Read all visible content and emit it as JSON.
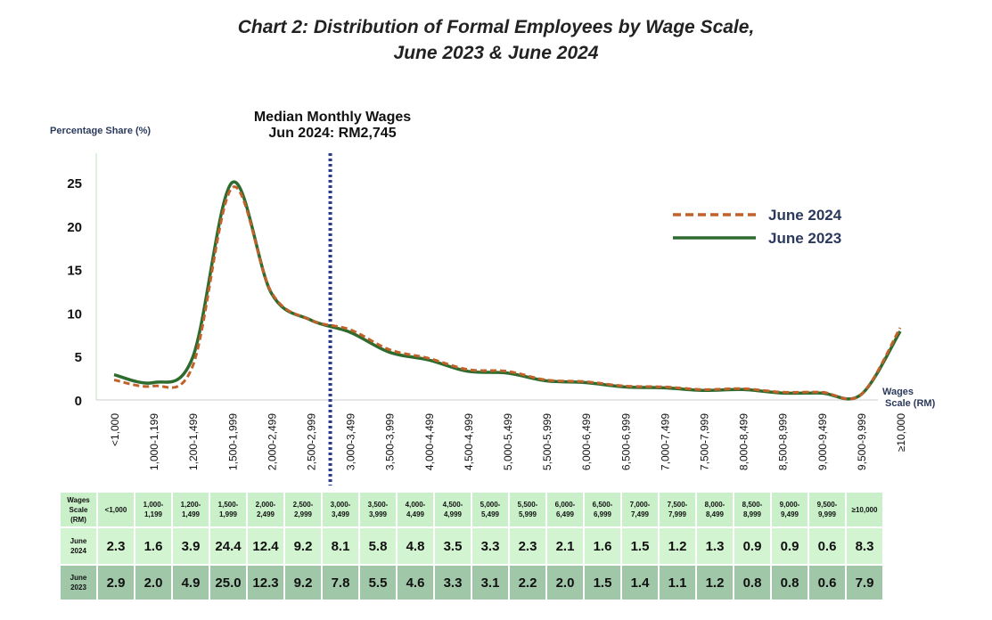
{
  "chart_data": {
    "type": "line",
    "title": "Chart 2: Distribution of Formal Employees by Wage Scale, June 2023 & June 2024",
    "title_lines": [
      "Chart 2: Distribution of Formal Employees by Wage Scale,",
      "June 2023 & June 2024"
    ],
    "ylabel": "Percentage Share (%)",
    "xlabel": "Wages Scale (RM)",
    "xlabel_lines": [
      "Wages",
      "Scale (RM)"
    ],
    "ylim": [
      0,
      25
    ],
    "yticks": [
      0,
      5,
      10,
      15,
      20,
      25
    ],
    "categories": [
      "<1,000",
      "1,000-1,199",
      "1,200-1,499",
      "1,500-1,999",
      "2,000-2,499",
      "2,500-2,999",
      "3,000-3,499",
      "3,500-3,999",
      "4,000-4,499",
      "4,500-4,999",
      "5,000-5,499",
      "5,500-5,999",
      "6,000-6,499",
      "6,500-6,999",
      "7,000-7,499",
      "7,500-7,999",
      "8,000-8,499",
      "8,500-8,999",
      "9,000-9,499",
      "9,500-9,999",
      "≥10,000"
    ],
    "series": [
      {
        "name": "June 2024",
        "color": "#c0622a",
        "style": "dashed",
        "values": [
          2.3,
          1.6,
          3.9,
          24.4,
          12.4,
          9.2,
          8.1,
          5.8,
          4.8,
          3.5,
          3.3,
          2.3,
          2.1,
          1.6,
          1.5,
          1.2,
          1.3,
          0.9,
          0.9,
          0.6,
          8.3
        ]
      },
      {
        "name": "June 2023",
        "color": "#2e6b2e",
        "style": "solid",
        "values": [
          2.9,
          2.0,
          4.9,
          25.0,
          12.3,
          9.2,
          7.8,
          5.5,
          4.6,
          3.3,
          3.1,
          2.2,
          2.0,
          1.5,
          1.4,
          1.1,
          1.2,
          0.8,
          0.8,
          0.6,
          7.9
        ]
      }
    ],
    "annotation": {
      "lines": [
        "Median Monthly Wages",
        "Jun 2024: RM2,745"
      ],
      "category_position": 5.5,
      "color": "#2b3a8c"
    },
    "legend": "top-right"
  },
  "table": {
    "header_label": [
      "Wages",
      "Scale",
      "(RM)"
    ],
    "row_labels": [
      [
        "June",
        "2024"
      ],
      [
        "June",
        "2023"
      ]
    ]
  }
}
